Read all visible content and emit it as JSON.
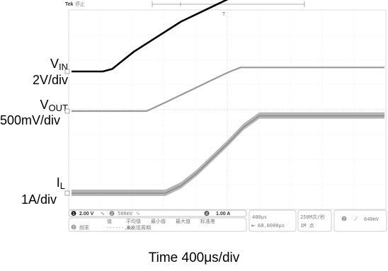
{
  "scope": {
    "brand": "Tek",
    "status": "停止",
    "trigger_marker": "T"
  },
  "labels": {
    "vin_main": "V",
    "vin_sub": "IN",
    "vin_scale": "2V/div",
    "vout_main": "V",
    "vout_sub": "OUT",
    "vout_scale": "500mV/div",
    "il_main": "I",
    "il_sub": "L",
    "il_scale": "1A/div",
    "time": "Time 400μs/div"
  },
  "readout": {
    "ch1_num": "1",
    "ch1_scale": "2.00 V",
    "ch2_num": "2",
    "ch2_scale": "500mV",
    "ch4_num": "4",
    "ch4_scale": "1.00 A",
    "time_scale": "400μs",
    "time_offset": "60.0000μs",
    "sample_rate": "250M次/秒",
    "record_length": "1M 点",
    "trig_num": "2",
    "trig_level": "640mV",
    "meas_value_hdr": "值",
    "meas_mean_hdr": "平均值",
    "meas_min_hdr": "最小值",
    "meas_max_hdr": "最大值",
    "meas_std_hdr": "标准差",
    "meas_row_ch": "2",
    "meas_row_name": "频率",
    "meas_row_value": "------.Hz",
    "meas_row_note": "未发现周期"
  },
  "chart_data": {
    "type": "line",
    "title": "",
    "xlabel": "Time 400μs/div",
    "x_divisions": 10,
    "y_divisions": 8,
    "x_unit": "div",
    "grid": true,
    "series": [
      {
        "name": "VIN",
        "color": "#000000",
        "scale": "2V/div",
        "ground_div": 0,
        "x": [
          0,
          0.5,
          1.0,
          1.3,
          1.6,
          2.0,
          2.5,
          3.0,
          3.5,
          4.0,
          4.5,
          5.0,
          5.5,
          6.0,
          6.5,
          7.0,
          7.5,
          8.0,
          8.5,
          9.0,
          9.5,
          10.0
        ],
        "values": [
          0,
          0,
          0,
          0.1,
          0.4,
          0.8,
          1.2,
          1.6,
          2.0,
          2.3,
          2.6,
          2.9,
          3.1,
          3.3,
          3.45,
          3.55,
          3.65,
          3.72,
          3.78,
          3.82,
          3.85,
          3.87
        ]
      },
      {
        "name": "VOUT",
        "color": "#9a9a9a",
        "scale": "500mV/div",
        "ground_div": 0,
        "x": [
          0,
          1.0,
          2.0,
          2.4,
          3.0,
          3.5,
          4.0,
          4.5,
          5.0,
          5.4,
          6.0,
          7.0,
          8.0,
          9.0,
          10.0
        ],
        "values": [
          0,
          0,
          0,
          0,
          0.35,
          0.65,
          0.95,
          1.25,
          1.55,
          1.75,
          1.75,
          1.75,
          1.75,
          1.75,
          1.75
        ]
      },
      {
        "name": "IL",
        "color": "#8c8c8c",
        "scale": "1A/div",
        "ground_div": 0,
        "x": [
          0,
          1.0,
          2.0,
          3.0,
          3.5,
          4.0,
          4.5,
          5.0,
          5.5,
          6.0,
          6.5,
          7.0,
          8.0,
          9.0,
          10.0
        ],
        "values": [
          0,
          0,
          0,
          0,
          0.3,
          0.8,
          1.4,
          2.0,
          2.65,
          3.1,
          3.1,
          3.1,
          3.1,
          3.1,
          3.1
        ]
      }
    ]
  }
}
